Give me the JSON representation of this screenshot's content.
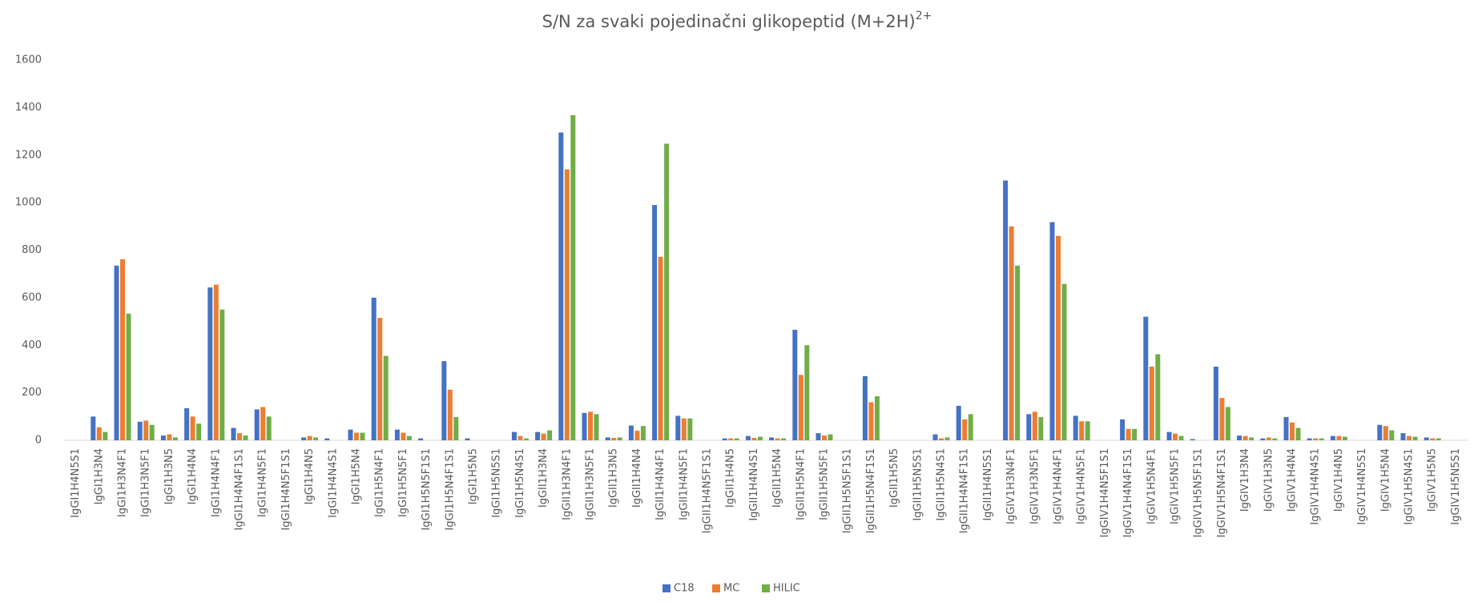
{
  "chart_data": {
    "type": "bar",
    "title": "S/N za svaki pojedinačni glikopeptid (M+2H)",
    "title_superscript": "2+",
    "categories": [
      "IgGI1H4N5S1",
      "IgGI1H3N4",
      "IgGI1H3N4F1",
      "IgGI1H3N5F1",
      "IgGI1H3N5",
      "IgGI1H4N4",
      "IgGI1H4N4F1",
      "IgGI1H4N4F1S1",
      "IgGI1H4N5F1",
      "IgGI1H4N5F1S1",
      "IgGI1H4N5",
      "IgGI1H4N4S1",
      "IgGI1H5N4",
      "IgGI1H5N4F1",
      "IgGI1H5N5F1",
      "IgGI1H5N5F1S1",
      "IgGI1H5N4F1S1",
      "IgGI1H5N5",
      "IgGI1H5N5S1",
      "IgGI1H5N4S1",
      "IgGII1H3N4",
      "IgGII1H3N4F1",
      "IgGII1H3N5F1",
      "IgGII1H3N5",
      "IgGII1H4N4",
      "IgGII1H4N4F1",
      "IgGII1H4N5F1",
      "IgGII1H4N5F1S1",
      "IgGII1H4N5",
      "IgGII1H4N4S1",
      "IgGII1H5N4",
      "IgGII1H5N4F1",
      "IgGII1H5N5F1",
      "IgGII1H5N5F1S1",
      "IgGII1H5N4F1S1",
      "IgGII1H5N5",
      "IgGII1H5N5S1",
      "IgGII1H5N4S1",
      "IgGII1H4N4F1S1",
      "IgGII1H4N5S1",
      "IgGIV1H3N4F1",
      "IgGIV1H3N5F1",
      "IgGIV1H4N4F1",
      "IgGIV1H4N5F1",
      "IgGIV1H4N5F1S1",
      "IgGIV1H4N4F1S1",
      "IgGIV1H5N4F1",
      "IgGIV1H5N5F1",
      "IgGIV1H5N5F1S1",
      "IgGIV1H5N4F1S1",
      "IgGIV1H3N4",
      "IgGIV1H3N5",
      "IgGIV1H4N4",
      "IgGIV1H4N4S1",
      "IgGIV1H4N5",
      "IgGIV1H4N5S1",
      "IgGIV1H5N4",
      "IgGIV1H5N4S1",
      "IgGIV1H5N5",
      "IgGIV1H5N5S1"
    ],
    "series": [
      {
        "name": "C18",
        "color": "#4472c4",
        "values": [
          0,
          100,
          735,
          78,
          20,
          135,
          643,
          52,
          130,
          0,
          12,
          8,
          45,
          600,
          45,
          8,
          333,
          8,
          0,
          35,
          35,
          1295,
          115,
          12,
          62,
          990,
          103,
          0,
          8,
          18,
          12,
          465,
          30,
          0,
          270,
          0,
          0,
          25,
          145,
          0,
          1093,
          110,
          918,
          103,
          0,
          88,
          520,
          35,
          5,
          310,
          20,
          8,
          98,
          8,
          18,
          0,
          65,
          30,
          12,
          0
        ]
      },
      {
        "name": "MC",
        "color": "#ed7d31",
        "values": [
          0,
          55,
          762,
          83,
          25,
          100,
          655,
          30,
          140,
          0,
          18,
          0,
          32,
          515,
          32,
          0,
          213,
          0,
          0,
          18,
          28,
          1140,
          120,
          10,
          40,
          772,
          92,
          0,
          8,
          10,
          8,
          275,
          20,
          0,
          160,
          0,
          0,
          8,
          88,
          0,
          900,
          120,
          860,
          80,
          0,
          48,
          310,
          28,
          0,
          178,
          18,
          12,
          75,
          8,
          18,
          0,
          60,
          18,
          8,
          0
        ]
      },
      {
        "name": "HILIC",
        "color": "#70ad47",
        "values": [
          0,
          35,
          533,
          65,
          12,
          70,
          550,
          20,
          100,
          0,
          12,
          0,
          32,
          355,
          18,
          0,
          98,
          0,
          0,
          8,
          42,
          1368,
          110,
          12,
          60,
          1248,
          92,
          0,
          8,
          15,
          8,
          400,
          25,
          0,
          185,
          0,
          0,
          12,
          110,
          0,
          735,
          98,
          658,
          80,
          0,
          48,
          362,
          18,
          0,
          140,
          12,
          8,
          52,
          8,
          15,
          0,
          42,
          15,
          8,
          0
        ]
      }
    ],
    "ylim": [
      0,
      1600
    ],
    "yticks": [
      0,
      200,
      400,
      600,
      800,
      1000,
      1200,
      1400,
      1600
    ],
    "grid": false,
    "legend": "bottom"
  }
}
